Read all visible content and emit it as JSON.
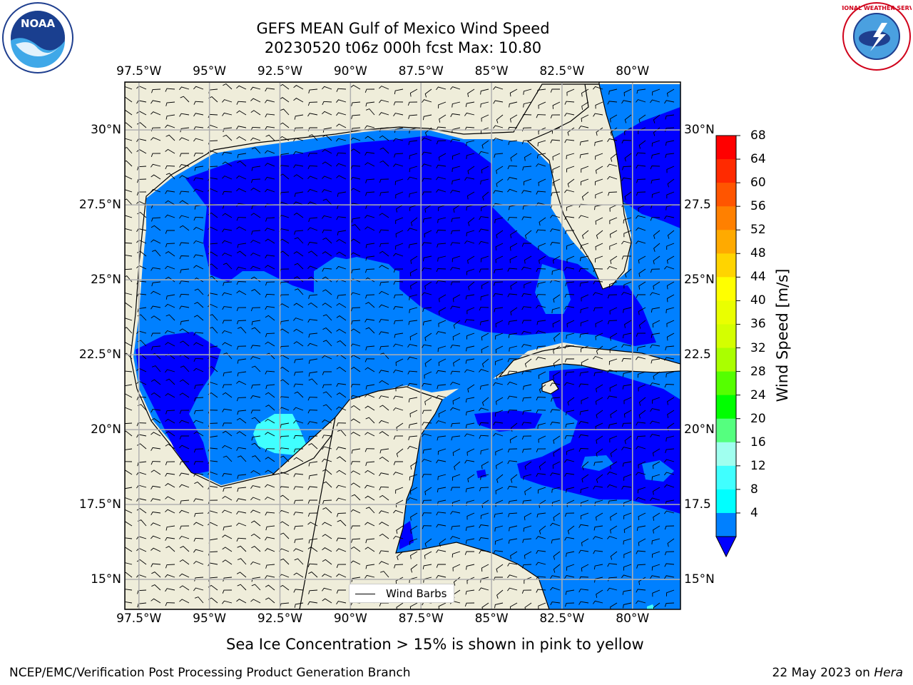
{
  "title": {
    "line1": "GEFS MEAN Gulf of Mexico Wind Speed",
    "line2": "20230520 t06z 000h fcst   Max: 10.80"
  },
  "logos": {
    "left": "noaa-logo",
    "right": "nws-logo",
    "right_text": "NATIONAL WEATHER SERVICE"
  },
  "map": {
    "lon_labels": [
      "97.5°W",
      "95°W",
      "92.5°W",
      "90°W",
      "87.5°W",
      "85°W",
      "82.5°W",
      "80°W"
    ],
    "lat_labels_left": [
      "30°N",
      "27.5°N",
      "25°N",
      "22.5°N",
      "20°N",
      "17.5°N",
      "15°N"
    ],
    "lat_labels_right": [
      "30°N",
      "27.5",
      "25°N",
      "22.5",
      "20°N",
      "17.5",
      "15°N"
    ],
    "lon_values": [
      -97.5,
      -95,
      -92.5,
      -90,
      -87.5,
      -85,
      -82.5,
      -80
    ],
    "lat_values": [
      30,
      27.5,
      25,
      22.5,
      20,
      17.5,
      15
    ],
    "extent": {
      "lon_min": -98,
      "lon_max": -78.3,
      "lat_min": 14,
      "lat_max": 31.6
    },
    "legend_label": "Wind Barbs",
    "colors": {
      "land": "#efedda",
      "grid": "#b0b0b0",
      "blue_4_8": "#0080ff",
      "blue_lt4": "#0000ff",
      "cyan_8_12": "#00ffff",
      "cyan_12_16": "#3cfff0"
    }
  },
  "colorbar": {
    "title": "Wind Speed [m/s]",
    "ticks": [
      "68",
      "64",
      "60",
      "56",
      "52",
      "48",
      "44",
      "40",
      "36",
      "32",
      "28",
      "24",
      "20",
      "16",
      "12",
      "8",
      "4"
    ],
    "colors": [
      "#ff0000",
      "#ff2a00",
      "#ff5500",
      "#ff8000",
      "#ffaa00",
      "#ffd400",
      "#ffff00",
      "#eaff00",
      "#d4ff00",
      "#aaff00",
      "#55ff00",
      "#00ff00",
      "#55ff7f",
      "#a0ffef",
      "#40ffff",
      "#00ffff",
      "#0080ff"
    ],
    "under_color": "#0000ff"
  },
  "footnote": "Sea Ice Concentration > 15% is shown in pink to yellow",
  "credit_left": "NCEP/EMC/Verification Post Processing Product Generation Branch",
  "credit_right_date": "22 May 2023 on",
  "credit_right_host": "Hera"
}
